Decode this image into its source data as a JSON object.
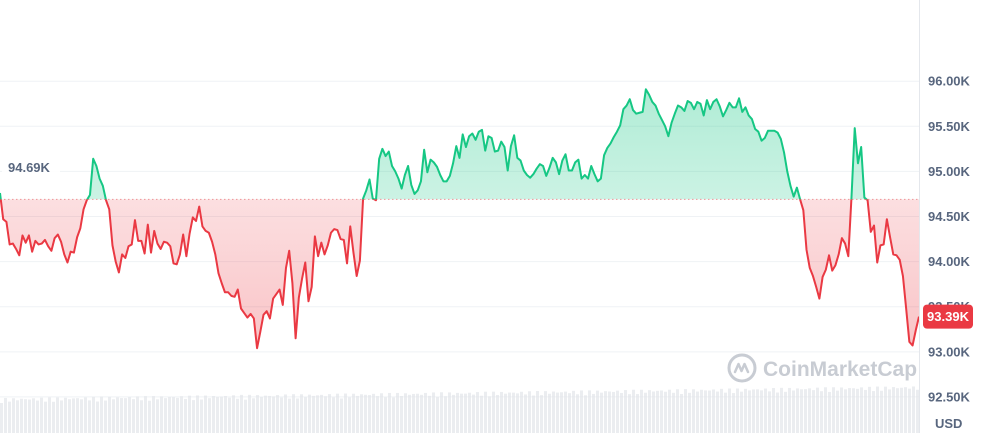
{
  "chart_data": {
    "type": "area",
    "title": "",
    "xlabel": "",
    "ylabel": "",
    "unit": "USD",
    "ylim": [
      92100,
      96900
    ],
    "yticks": [
      92500,
      93000,
      93500,
      94000,
      94500,
      95000,
      95500,
      96000
    ],
    "ytick_labels": [
      "92.50K",
      "93.00K",
      "93.50K",
      "94.00K",
      "94.50K",
      "95.00K",
      "95.50K",
      "96.00K"
    ],
    "baseline": {
      "value": 94690,
      "label": "94.69K"
    },
    "current_price": {
      "value": 93390,
      "label": "93.39K"
    },
    "colors": {
      "up": "#16c784",
      "down": "#ea3943",
      "grid": "#eff2f5",
      "axis": "#e4e7ec",
      "volume": "#e2e5ea"
    },
    "watermark": "CoinMarketCap",
    "series": [
      {
        "values": [
          94760,
          94470,
          94440,
          94190,
          94200,
          94140,
          94070,
          94290,
          94210,
          94290,
          94110,
          94230,
          94190,
          94200,
          94240,
          94170,
          94120,
          94260,
          94300,
          94220,
          94080,
          93990,
          94110,
          94100,
          94270,
          94370,
          94580,
          94680,
          94740,
          95140,
          95060,
          94920,
          94840,
          94680,
          94580,
          94180,
          94000,
          93880,
          94080,
          94040,
          94170,
          94190,
          94460,
          94230,
          94230,
          94090,
          94410,
          94100,
          94340,
          94200,
          94140,
          94220,
          94210,
          94170,
          93980,
          93970,
          94080,
          94300,
          94060,
          94310,
          94490,
          94450,
          94610,
          94390,
          94340,
          94320,
          94220,
          94080,
          93870,
          93760,
          93660,
          93660,
          93620,
          93610,
          93690,
          93480,
          93430,
          93380,
          93420,
          93370,
          93040,
          93220,
          93410,
          93450,
          93370,
          93590,
          93640,
          93690,
          93520,
          93930,
          94120,
          93760,
          93150,
          93600,
          93810,
          93990,
          93560,
          93720,
          94280,
          94060,
          94210,
          94080,
          94180,
          94320,
          94360,
          94350,
          94250,
          94240,
          93980,
          94390,
          94100,
          93840,
          94010,
          94700,
          94790,
          94910,
          94700,
          94680,
          95140,
          95250,
          95170,
          95220,
          95060,
          95000,
          94920,
          94810,
          94960,
          95060,
          94850,
          94750,
          94790,
          94890,
          95240,
          94990,
          95130,
          95100,
          95050,
          94960,
          94890,
          94890,
          94950,
          95090,
          95280,
          95150,
          95410,
          95270,
          95390,
          95420,
          95350,
          95440,
          95460,
          95230,
          95390,
          95370,
          95220,
          95230,
          95330,
          95270,
          95010,
          95280,
          95400,
          95150,
          95120,
          95010,
          94960,
          94930,
          94970,
          95030,
          95080,
          95060,
          94950,
          95040,
          95150,
          95100,
          94970,
          95120,
          95190,
          95010,
          95010,
          95100,
          95130,
          94920,
          94960,
          94920,
          95060,
          94970,
          94890,
          94920,
          95180,
          95260,
          95310,
          95380,
          95440,
          95510,
          95690,
          95730,
          95800,
          95680,
          95640,
          95650,
          95660,
          95910,
          95850,
          95770,
          95730,
          95640,
          95570,
          95500,
          95390,
          95540,
          95640,
          95730,
          95710,
          95670,
          95780,
          95760,
          95690,
          95770,
          95750,
          95620,
          95790,
          95690,
          95770,
          95800,
          95720,
          95610,
          95680,
          95760,
          95710,
          95710,
          95810,
          95660,
          95710,
          95620,
          95580,
          95470,
          95440,
          95340,
          95370,
          95450,
          95450,
          95450,
          95430,
          95360,
          95210,
          95000,
          94840,
          94720,
          94820,
          94690,
          94570,
          94130,
          93930,
          93840,
          93720,
          93590,
          93830,
          93910,
          94070,
          93900,
          93960,
          94080,
          94260,
          94200,
          94060,
          94720,
          95480,
          95090,
          95270,
          94710,
          94680,
          94330,
          94400,
          93990,
          94180,
          94190,
          94470,
          94270,
          94080,
          94070,
          94020,
          93840,
          93480,
          93110,
          93070,
          93240,
          93390
        ]
      }
    ]
  }
}
